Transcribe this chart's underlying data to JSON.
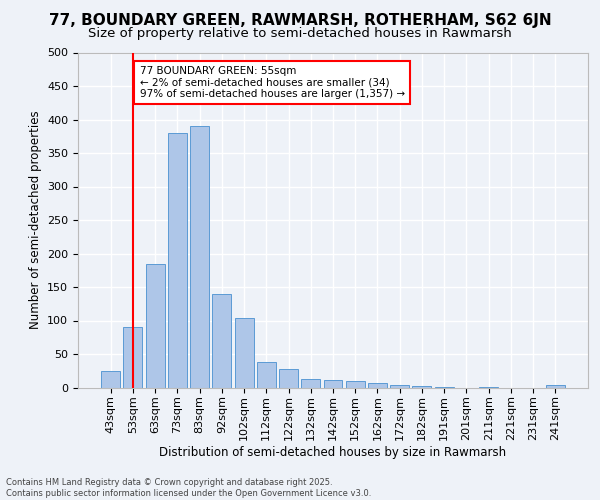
{
  "title": "77, BOUNDARY GREEN, RAWMARSH, ROTHERHAM, S62 6JN",
  "subtitle": "Size of property relative to semi-detached houses in Rawmarsh",
  "xlabel": "Distribution of semi-detached houses by size in Rawmarsh",
  "ylabel": "Number of semi-detached properties",
  "footnote": "Contains HM Land Registry data © Crown copyright and database right 2025.\nContains public sector information licensed under the Open Government Licence v3.0.",
  "categories": [
    "43sqm",
    "53sqm",
    "63sqm",
    "73sqm",
    "83sqm",
    "92sqm",
    "102sqm",
    "112sqm",
    "122sqm",
    "132sqm",
    "142sqm",
    "152sqm",
    "162sqm",
    "172sqm",
    "182sqm",
    "191sqm",
    "201sqm",
    "211sqm",
    "221sqm",
    "231sqm",
    "241sqm"
  ],
  "values": [
    25,
    90,
    185,
    380,
    390,
    140,
    103,
    38,
    28,
    13,
    11,
    9,
    6,
    3,
    2,
    1,
    0,
    1,
    0,
    0,
    4
  ],
  "bar_color": "#aec6e8",
  "bar_edge_color": "#5b9bd5",
  "vline_x": 1,
  "vline_color": "red",
  "annotation_box_text": "77 BOUNDARY GREEN: 55sqm\n← 2% of semi-detached houses are smaller (34)\n97% of semi-detached houses are larger (1,357) →",
  "annotation_box_color": "red",
  "annotation_box_bg": "white",
  "ylim": [
    0,
    500
  ],
  "yticks": [
    0,
    50,
    100,
    150,
    200,
    250,
    300,
    350,
    400,
    450,
    500
  ],
  "bg_color": "#eef2f8",
  "grid_color": "white",
  "title_fontsize": 11,
  "subtitle_fontsize": 9.5,
  "axis_fontsize": 8.5,
  "tick_fontsize": 8,
  "footnote_fontsize": 6,
  "annot_fontsize": 7.5
}
